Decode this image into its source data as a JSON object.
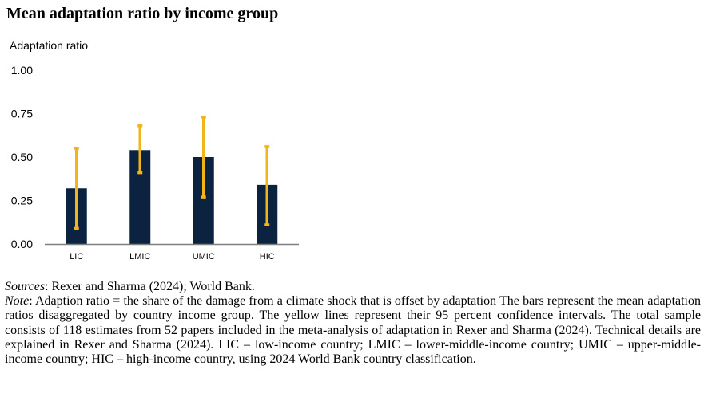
{
  "title": "Mean adaptation ratio by income group",
  "colors": {
    "bar": "#0b2341",
    "ci": "#f2b418",
    "axis": "#7f7f7f"
  },
  "chart_data": {
    "type": "bar",
    "title": "Mean adaptation ratio by income group",
    "ylabel": "Adaptation ratio",
    "xlabel": "",
    "categories": [
      "LIC",
      "LMIC",
      "UMIC",
      "HIC"
    ],
    "values": [
      0.32,
      0.54,
      0.5,
      0.34
    ],
    "ci_lower": [
      0.09,
      0.41,
      0.27,
      0.11
    ],
    "ci_upper": [
      0.55,
      0.68,
      0.73,
      0.56
    ],
    "ylim": [
      0,
      1
    ],
    "yticks": [
      "0.00",
      "0.25",
      "0.50",
      "0.75",
      "1.00"
    ],
    "ytick_values": [
      0,
      0.25,
      0.5,
      0.75,
      1.0
    ],
    "grid": false,
    "legend": "none"
  },
  "notes": {
    "sources_label": "Sources",
    "sources_text": ": Rexer and Sharma (2024); World Bank.",
    "note_label": "Note",
    "note_text": ": Adaption ratio = the share of the damage from a climate shock that is offset by adaptation The bars represent the mean adaptation ratios disaggregated by country income group. The yellow lines represent their 95 percent confidence intervals. The total sample consists of 118 estimates from 52 papers included in the meta-analysis of adaptation in Rexer and Sharma (2024). Technical details are explained in Rexer and Sharma (2024). LIC – low-income country; LMIC – lower-middle-income country; UMIC – upper-middle-income country; HIC – high-income country, using 2024 World Bank country classification."
  }
}
